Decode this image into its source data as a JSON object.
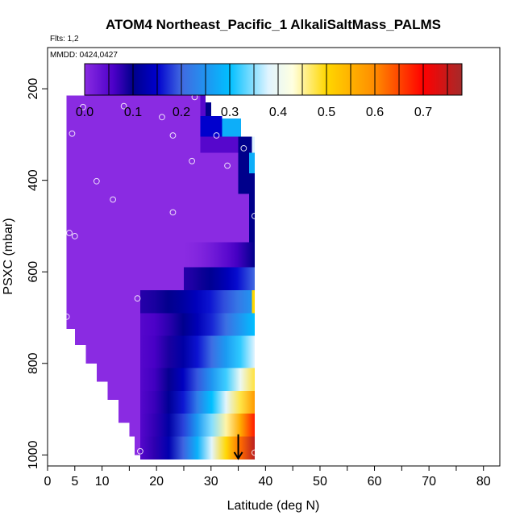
{
  "chart_data": {
    "type": "heatmap",
    "title": "ATOM4 Northeast_Pacific_1 AlkaliSaltMass_PALMS",
    "subtitle_flights": "Flts: 1,2",
    "subtitle_dates": "MMDD: 0424,0427",
    "xlabel": "Latitude (deg N)",
    "ylabel": "PSXC (mbar)",
    "xlim": [
      0,
      83
    ],
    "ylim": [
      1010,
      110
    ],
    "x_ticks": [
      0,
      5,
      10,
      20,
      30,
      40,
      50,
      60,
      70,
      80
    ],
    "x_minor_ticks": [
      0,
      5,
      10,
      15,
      20,
      25,
      30,
      35,
      40,
      45,
      50,
      55,
      60,
      65,
      70,
      75,
      80,
      85
    ],
    "y_ticks": [
      200,
      400,
      600,
      800,
      1000
    ],
    "colorbar": {
      "min": 0.0,
      "max": 0.78,
      "ticks": [
        0.0,
        0.1,
        0.2,
        0.3,
        0.4,
        0.5,
        0.6,
        0.7
      ],
      "stops": [
        {
          "v": 0.0,
          "color": "#8a2be2"
        },
        {
          "v": 0.06,
          "color": "#4b00c8"
        },
        {
          "v": 0.1,
          "color": "#00008b"
        },
        {
          "v": 0.15,
          "color": "#0000cd"
        },
        {
          "v": 0.2,
          "color": "#4169e1"
        },
        {
          "v": 0.3,
          "color": "#00bfff"
        },
        {
          "v": 0.38,
          "color": "#e0f4ff"
        },
        {
          "v": 0.43,
          "color": "#ffffe0"
        },
        {
          "v": 0.5,
          "color": "#ffd700"
        },
        {
          "v": 0.6,
          "color": "#ff8c00"
        },
        {
          "v": 0.7,
          "color": "#ff0000"
        },
        {
          "v": 0.78,
          "color": "#a52a2a"
        }
      ]
    },
    "field_regions": [
      {
        "x0": 3.5,
        "x1": 16,
        "p0": 215,
        "p1": 725,
        "v": 0.0
      },
      {
        "x0": 5,
        "x1": 16,
        "p0": 725,
        "p1": 760,
        "v": 0.0
      },
      {
        "x0": 7,
        "x1": 16,
        "p0": 760,
        "p1": 800,
        "v": 0.0
      },
      {
        "x0": 9,
        "x1": 16,
        "p0": 800,
        "p1": 840,
        "v": 0.0
      },
      {
        "x0": 11,
        "x1": 16,
        "p0": 840,
        "p1": 880,
        "v": 0.0
      },
      {
        "x0": 13,
        "x1": 16,
        "p0": 880,
        "p1": 930,
        "v": 0.0
      },
      {
        "x0": 15,
        "x1": 16,
        "p0": 930,
        "p1": 960,
        "v": 0.0
      },
      {
        "x0": 16.5,
        "x1": 17.5,
        "p0": 960,
        "p1": 1000,
        "v": 0.0
      },
      {
        "x0": 16,
        "x1": 28,
        "p0": 215,
        "p1": 385,
        "v": 0.0
      },
      {
        "x0": 28,
        "x1": 29,
        "p0": 215,
        "p1": 260,
        "v": 0.05
      },
      {
        "x0": 29,
        "x1": 30,
        "p0": 230,
        "p1": 265,
        "v": 0.1
      },
      {
        "x0": 28,
        "x1": 32,
        "p0": 260,
        "p1": 305,
        "v": 0.15
      },
      {
        "x0": 32,
        "x1": 35.5,
        "p0": 265,
        "p1": 305,
        "v": 0.28
      },
      {
        "x0": 28,
        "x1": 35,
        "p0": 305,
        "p1": 340,
        "v": 0.05
      },
      {
        "x0": 35,
        "x1": 37.5,
        "p0": 305,
        "p1": 340,
        "v": 0.1
      },
      {
        "x0": 37.5,
        "x1": 38,
        "p0": 305,
        "p1": 340,
        "v": 0.38
      },
      {
        "x0": 28,
        "x1": 35,
        "p0": 340,
        "p1": 385,
        "v": 0.0
      },
      {
        "x0": 35,
        "x1": 37,
        "p0": 340,
        "p1": 385,
        "v": 0.1
      },
      {
        "x0": 37,
        "x1": 38,
        "p0": 340,
        "p1": 385,
        "v": 0.28
      },
      {
        "x0": 16,
        "x1": 35,
        "p0": 385,
        "p1": 430,
        "v": 0.0
      },
      {
        "x0": 35,
        "x1": 38,
        "p0": 385,
        "p1": 430,
        "v": 0.1
      },
      {
        "x0": 16,
        "x1": 37,
        "p0": 430,
        "p1": 535,
        "v": 0.0
      },
      {
        "x0": 37,
        "x1": 38,
        "p0": 430,
        "p1": 535,
        "v": 0.1
      },
      {
        "x0": 16,
        "x1": 25,
        "p0": 535,
        "p1": 590,
        "v": 0.0
      },
      {
        "x0": 16,
        "x1": 25,
        "p0": 590,
        "p1": 640,
        "v": 0.0
      },
      {
        "x0": 16,
        "x1": 17,
        "p0": 640,
        "p1": 1000,
        "v": 0.0
      }
    ],
    "field_gradients": [
      {
        "x0": 25,
        "x1": 38,
        "p0": 535,
        "p1": 590,
        "vx0": 0.0,
        "vx1": 0.1
      },
      {
        "x0": 25,
        "x1": 38,
        "p0": 590,
        "p1": 640,
        "vx0": 0.08,
        "vx1": 0.2
      },
      {
        "x0": 37.5,
        "x1": 38,
        "p0": 640,
        "p1": 690,
        "vx0": 0.5,
        "vx1": 0.5
      },
      {
        "x0": 17,
        "x1": 37.5,
        "p0": 640,
        "p1": 690,
        "vx0": 0.08,
        "vx1": 0.25
      },
      {
        "x0": 17,
        "x1": 38,
        "p0": 690,
        "p1": 740,
        "vx0": 0.05,
        "vx1": 0.3
      },
      {
        "x0": 17,
        "x1": 38,
        "p0": 740,
        "p1": 810,
        "vx0": 0.05,
        "vx1": 0.38
      },
      {
        "x0": 17,
        "x1": 38,
        "p0": 810,
        "p1": 860,
        "vx0": 0.05,
        "vx1": 0.48
      },
      {
        "x0": 17,
        "x1": 38,
        "p0": 860,
        "p1": 910,
        "vx0": 0.05,
        "vx1": 0.58
      },
      {
        "x0": 17,
        "x1": 38,
        "p0": 910,
        "p1": 960,
        "vx0": 0.05,
        "vx1": 0.68
      },
      {
        "x0": 17,
        "x1": 38,
        "p0": 960,
        "p1": 1010,
        "vx0": 0.05,
        "vx1": 0.76
      }
    ],
    "points": [
      {
        "x": 29,
        "p": 200
      },
      {
        "x": 27,
        "p": 218
      },
      {
        "x": 6.5,
        "p": 240
      },
      {
        "x": 14,
        "p": 238
      },
      {
        "x": 21,
        "p": 262
      },
      {
        "x": 4.5,
        "p": 298
      },
      {
        "x": 23,
        "p": 302
      },
      {
        "x": 31,
        "p": 302
      },
      {
        "x": 36,
        "p": 330
      },
      {
        "x": 26.5,
        "p": 358
      },
      {
        "x": 33,
        "p": 368
      },
      {
        "x": 9,
        "p": 402
      },
      {
        "x": 12,
        "p": 442
      },
      {
        "x": 23,
        "p": 470
      },
      {
        "x": 38,
        "p": 478
      },
      {
        "x": 4,
        "p": 515
      },
      {
        "x": 5,
        "p": 522
      },
      {
        "x": 16.5,
        "p": 658
      },
      {
        "x": 3.5,
        "p": 698
      },
      {
        "x": 17,
        "p": 992
      },
      {
        "x": 38,
        "p": 995
      }
    ],
    "arrow": {
      "x": 35,
      "p_from": 955,
      "p_to": 1008
    }
  }
}
